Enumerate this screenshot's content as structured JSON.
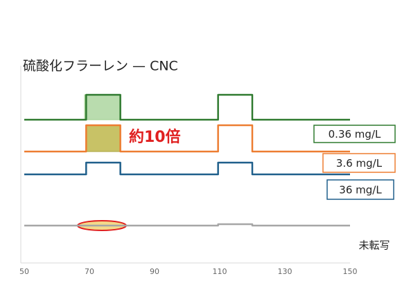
{
  "chart_data": {
    "type": "line",
    "title": "硫酸化フラーレン — CNC",
    "annotation": "約10倍",
    "x": [
      50,
      69,
      69,
      79.5,
      79.5,
      109.5,
      109.5,
      120,
      120,
      150
    ],
    "series": [
      {
        "name": "0.36 mg/L",
        "color": "#2f7a2f",
        "values": [
          207,
          207,
          243,
          243,
          207,
          207,
          243,
          243,
          207,
          207
        ]
      },
      {
        "name": "3.6 mg/L",
        "color": "#ed7d31",
        "values": [
          161,
          161,
          199,
          199,
          161,
          161,
          199,
          199,
          161,
          161
        ]
      },
      {
        "name": "36 mg/L",
        "color": "#1f5f8b",
        "values": [
          128,
          128,
          145,
          145,
          128,
          128,
          145,
          145,
          128,
          128
        ]
      },
      {
        "name": "未転写",
        "color": "#a6a6a6",
        "values": [
          54,
          54,
          54,
          54,
          54,
          54,
          56,
          56,
          54,
          54
        ]
      }
    ],
    "xlim": [
      50,
      150
    ],
    "xticks": [
      50,
      70,
      90,
      110,
      130,
      150
    ],
    "ylim": [
      0,
      300
    ]
  }
}
